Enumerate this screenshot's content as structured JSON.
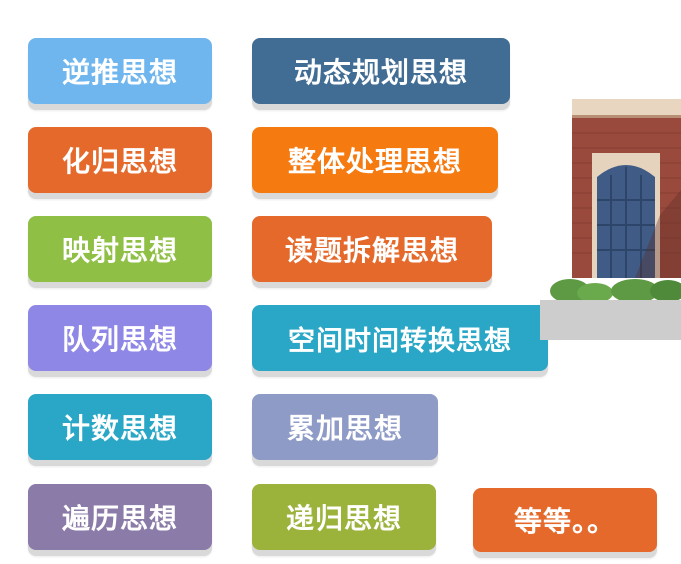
{
  "tags": [
    {
      "label": "逆推思想",
      "color": "#6fb6ee"
    },
    {
      "label": "化归思想",
      "color": "#e4692a"
    },
    {
      "label": "映射思想",
      "color": "#8fbf45"
    },
    {
      "label": "队列思想",
      "color": "#8f87e6"
    },
    {
      "label": "计数思想",
      "color": "#2aa7c6"
    },
    {
      "label": "遍历思想",
      "color": "#8a7ba8"
    },
    {
      "label": "动态规划思想",
      "color": "#416d94"
    },
    {
      "label": "整体处理思想",
      "color": "#f57a10"
    },
    {
      "label": "读题拆解思想",
      "color": "#e4692a"
    },
    {
      "label": "空间时间转换思想",
      "color": "#2aa7c6"
    },
    {
      "label": "累加思想",
      "color": "#8e9bc7"
    },
    {
      "label": "递归思想",
      "color": "#9bb23b"
    },
    {
      "label": "等等。。",
      "color": "#e4692a"
    }
  ]
}
